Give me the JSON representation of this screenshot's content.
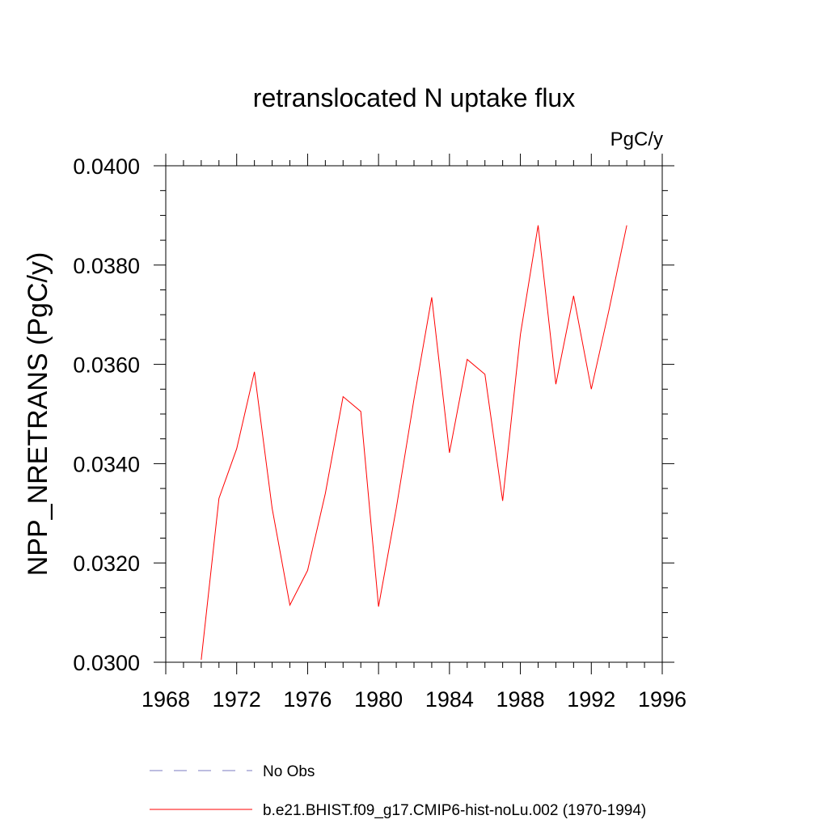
{
  "chart_data": {
    "type": "line",
    "title": "retranslocated N uptake flux",
    "units": "PgC/y",
    "ylabel": "NPP_NRETRANS  (PgC/y)",
    "xlabel": "",
    "xlim": [
      1968,
      1996
    ],
    "ylim": [
      0.03,
      0.04
    ],
    "x_major_ticks": [
      1968,
      1972,
      1976,
      1980,
      1984,
      1988,
      1992,
      1996
    ],
    "x_minor_step": 1,
    "y_major_ticks": [
      0.03,
      0.032,
      0.034,
      0.036,
      0.038,
      0.04
    ],
    "y_tick_labels": [
      "0.0300",
      "0.0320",
      "0.0340",
      "0.0360",
      "0.0380",
      "0.0400"
    ],
    "y_minor_step": 0.0005,
    "grid": false,
    "legend_position": "bottom",
    "series": [
      {
        "name": "No Obs",
        "style": "dashed",
        "color": "#7b7bc0",
        "x": [],
        "y": []
      },
      {
        "name": "b.e21.BHIST.f09_g17.CMIP6-hist-noLu.002 (1970-1994)",
        "style": "solid",
        "color": "#ff0000",
        "x": [
          1970,
          1971,
          1972,
          1973,
          1974,
          1975,
          1976,
          1977,
          1978,
          1979,
          1980,
          1981,
          1982,
          1983,
          1984,
          1985,
          1986,
          1987,
          1988,
          1989,
          1990,
          1991,
          1992,
          1993,
          1994
        ],
        "y": [
          0.03005,
          0.0333,
          0.0343,
          0.03585,
          0.0331,
          0.03115,
          0.03185,
          0.0334,
          0.03535,
          0.03505,
          0.03112,
          0.0331,
          0.0353,
          0.03735,
          0.03422,
          0.0361,
          0.0358,
          0.03325,
          0.0366,
          0.0388,
          0.0356,
          0.03738,
          0.0355,
          0.0371,
          0.0388
        ]
      }
    ]
  }
}
